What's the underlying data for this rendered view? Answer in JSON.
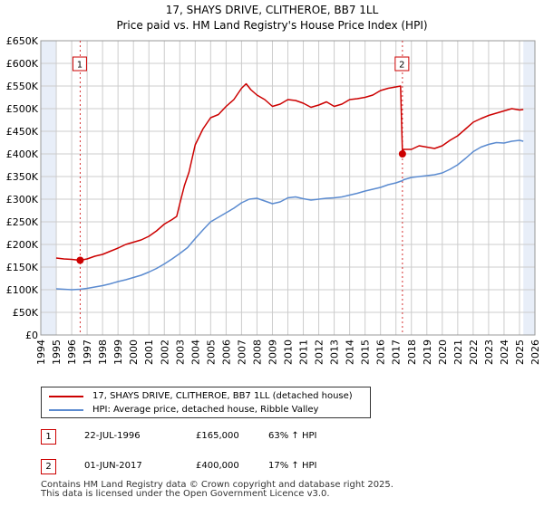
{
  "title_line1": "17, SHAYS DRIVE, CLITHEROE, BB7 1LL",
  "title_line2": "Price paid vs. HM Land Registry's House Price Index (HPI)",
  "colors": {
    "property": "#cc0000",
    "hpi": "#5b8bd0",
    "shade": "#e8eef8",
    "grid": "#cccccc",
    "marker": "#cc0000"
  },
  "chart_data": {
    "type": "line",
    "xlim": [
      1994,
      2026
    ],
    "ylim": [
      0,
      650000
    ],
    "x_ticks": [
      "1994",
      "1995",
      "1996",
      "1997",
      "1998",
      "1999",
      "2000",
      "2001",
      "2002",
      "2003",
      "2004",
      "2005",
      "2006",
      "2007",
      "2008",
      "2009",
      "2010",
      "2011",
      "2012",
      "2013",
      "2014",
      "2015",
      "2016",
      "2017",
      "2018",
      "2019",
      "2020",
      "2021",
      "2022",
      "2023",
      "2024",
      "2025",
      "2026"
    ],
    "y_ticks": [
      "£0",
      "£50K",
      "£100K",
      "£150K",
      "£200K",
      "£250K",
      "£300K",
      "£350K",
      "£400K",
      "£450K",
      "£500K",
      "£550K",
      "£600K",
      "£650K"
    ],
    "data_start": 1995.0,
    "data_end": 2025.25,
    "series": [
      {
        "name": "17, SHAYS DRIVE, CLITHEROE, BB7 1LL (detached house)",
        "x": [
          1995.0,
          1995.5,
          1996.0,
          1996.55,
          1997.0,
          1997.5,
          1998.0,
          1998.5,
          1999.0,
          1999.5,
          2000.0,
          2000.5,
          2001.0,
          2001.5,
          2002.0,
          2002.5,
          2002.8,
          2003.0,
          2003.3,
          2003.6,
          2004.0,
          2004.5,
          2005.0,
          2005.5,
          2006.0,
          2006.5,
          2007.0,
          2007.3,
          2007.6,
          2008.0,
          2008.5,
          2009.0,
          2009.5,
          2010.0,
          2010.5,
          2011.0,
          2011.5,
          2012.0,
          2012.5,
          2013.0,
          2013.5,
          2014.0,
          2014.5,
          2015.0,
          2015.5,
          2016.0,
          2016.5,
          2017.0,
          2017.3,
          2017.42,
          2017.5,
          2018.0,
          2018.5,
          2019.0,
          2019.5,
          2020.0,
          2020.5,
          2021.0,
          2021.5,
          2022.0,
          2022.5,
          2023.0,
          2023.5,
          2024.0,
          2024.5,
          2025.0,
          2025.25
        ],
        "values": [
          170000,
          168000,
          167000,
          165000,
          168000,
          174000,
          178000,
          185000,
          192000,
          200000,
          205000,
          210000,
          218000,
          230000,
          245000,
          255000,
          262000,
          290000,
          330000,
          360000,
          420000,
          455000,
          480000,
          487000,
          505000,
          520000,
          545000,
          555000,
          542000,
          530000,
          520000,
          505000,
          510000,
          520000,
          518000,
          512000,
          503000,
          508000,
          515000,
          505000,
          510000,
          520000,
          522000,
          525000,
          530000,
          540000,
          545000,
          548000,
          550000,
          400000,
          410000,
          410000,
          418000,
          415000,
          412000,
          418000,
          430000,
          440000,
          455000,
          470000,
          478000,
          485000,
          490000,
          495000,
          500000,
          497000,
          498000
        ]
      },
      {
        "name": "HPI: Average price, detached house, Ribble Valley",
        "x": [
          1995.0,
          1995.5,
          1996.0,
          1996.55,
          1997.0,
          1997.5,
          1998.0,
          1998.5,
          1999.0,
          1999.5,
          2000.0,
          2000.5,
          2001.0,
          2001.5,
          2002.0,
          2002.5,
          2003.0,
          2003.5,
          2004.0,
          2004.5,
          2005.0,
          2005.5,
          2006.0,
          2006.5,
          2007.0,
          2007.5,
          2008.0,
          2008.5,
          2009.0,
          2009.5,
          2010.0,
          2010.5,
          2011.0,
          2011.5,
          2012.0,
          2012.5,
          2013.0,
          2013.5,
          2014.0,
          2014.5,
          2015.0,
          2015.5,
          2016.0,
          2016.5,
          2017.0,
          2017.42,
          2017.5,
          2018.0,
          2018.5,
          2019.0,
          2019.5,
          2020.0,
          2020.5,
          2021.0,
          2021.5,
          2022.0,
          2022.5,
          2023.0,
          2023.5,
          2024.0,
          2024.5,
          2025.0,
          2025.25
        ],
        "values": [
          102000,
          101000,
          100000,
          101000,
          103000,
          106000,
          109000,
          113000,
          118000,
          122000,
          127000,
          132000,
          139000,
          147000,
          157000,
          168000,
          180000,
          193000,
          213000,
          232000,
          250000,
          260000,
          270000,
          280000,
          292000,
          300000,
          302000,
          296000,
          290000,
          294000,
          303000,
          305000,
          301000,
          298000,
          300000,
          302000,
          303000,
          305000,
          309000,
          313000,
          318000,
          322000,
          326000,
          332000,
          336000,
          341000,
          343000,
          348000,
          350000,
          352000,
          354000,
          358000,
          366000,
          376000,
          390000,
          405000,
          415000,
          421000,
          425000,
          424000,
          428000,
          430000,
          428000
        ]
      }
    ],
    "shaded_regions": [
      [
        1994,
        1995.0
      ],
      [
        2025.25,
        2026
      ]
    ],
    "sales": [
      {
        "id": "1",
        "x": 1996.55,
        "value": 165000
      },
      {
        "id": "2",
        "x": 2017.42,
        "value": 400000
      }
    ]
  },
  "legend": {
    "property_label": "17, SHAYS DRIVE, CLITHEROE, BB7 1LL (detached house)",
    "hpi_label": "HPI: Average price, detached house, Ribble Valley"
  },
  "transactions": [
    {
      "num": "1",
      "date": "22-JUL-1996",
      "price": "£165,000",
      "hpi": "63% ↑ HPI"
    },
    {
      "num": "2",
      "date": "01-JUN-2017",
      "price": "£400,000",
      "hpi": "17% ↑ HPI"
    }
  ],
  "footer_line1": "Contains HM Land Registry data © Crown copyright and database right 2025.",
  "footer_line2": "This data is licensed under the Open Government Licence v3.0."
}
